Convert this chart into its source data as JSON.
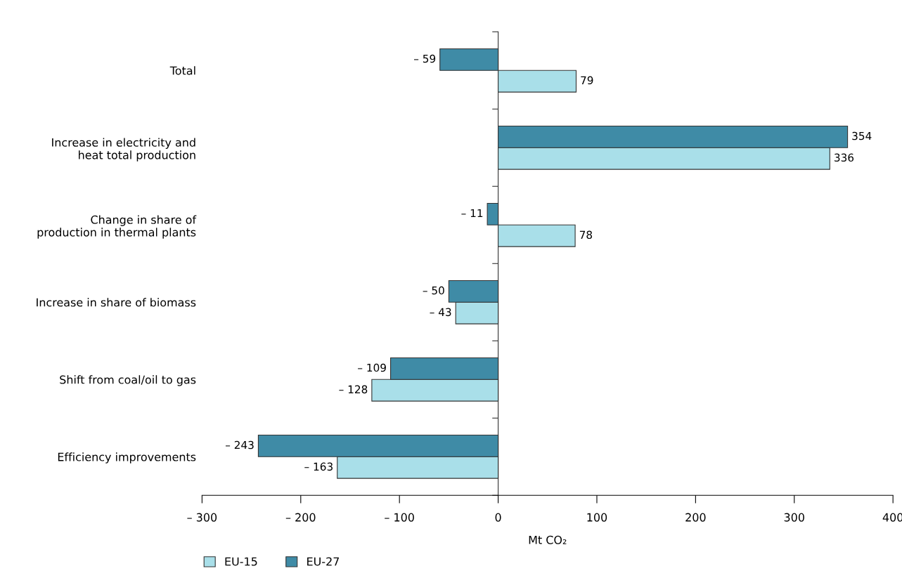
{
  "chart_data": {
    "type": "bar",
    "orientation": "horizontal",
    "categories": [
      "Total",
      "Increase in electricity and\nheat total production",
      "Change in share of\nproduction in thermal plants",
      "Increase in share of biomass",
      "Shift from coal/oil to gas",
      "Efficiency improvements"
    ],
    "series": [
      {
        "name": "EU-15",
        "color": "#a9dfe9",
        "values": [
          79,
          336,
          78,
          -43,
          -128,
          -163
        ],
        "value_labels": [
          "79",
          "336",
          "78",
          "– 43",
          "– 128",
          "– 163"
        ]
      },
      {
        "name": "EU-27",
        "color": "#3f8ba6",
        "values": [
          -59,
          354,
          -11,
          -50,
          -109,
          -243
        ],
        "value_labels": [
          "– 59",
          "354",
          "– 11",
          "– 50",
          "– 109",
          "– 243"
        ]
      }
    ],
    "xlabel": "Mt CO₂",
    "xlim": [
      -300,
      400
    ],
    "xticks": [
      {
        "value": -300,
        "label": "– 300"
      },
      {
        "value": -200,
        "label": "– 200"
      },
      {
        "value": -100,
        "label": "– 100"
      },
      0,
      100,
      200,
      300,
      400
    ],
    "legend": "bottom left"
  }
}
